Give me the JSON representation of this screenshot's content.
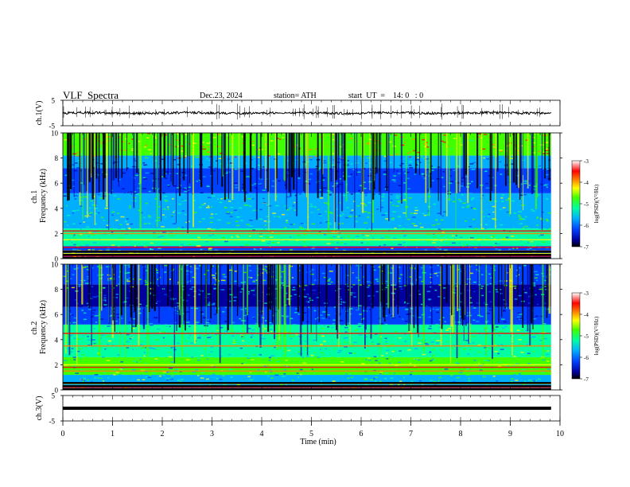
{
  "header": {
    "title": "VLF  Spectra",
    "date": "Dec.23, 2024",
    "station": "station= ATH",
    "start_ut": "start  UT  =    14: 0   : 0"
  },
  "chart_data": [
    {
      "type": "line",
      "panel": "ch1-waveform",
      "ylabel": "ch.1(V)",
      "ylim": [
        -5,
        5
      ],
      "yticks": [
        "5",
        "-5"
      ],
      "baseline_value": 0,
      "color": "#000000"
    },
    {
      "type": "heatmap",
      "panel": "ch1-spectrogram",
      "ylabel": "ch.1\nFrequency  (kHz)",
      "ylim": [
        0,
        10
      ],
      "yticks": [
        "0",
        "2",
        "4",
        "6",
        "8",
        "10"
      ],
      "xlim": [
        0,
        10
      ],
      "colorbar": {
        "label": "log(PSD)(V²/Hz)",
        "range": [
          -7,
          -3
        ],
        "ticks": [
          "-3",
          "-4",
          "-5",
          "-6",
          "-7"
        ]
      },
      "bands_khz": [
        0.2,
        0.4,
        0.6,
        0.9,
        1.5,
        2.0,
        2.2
      ]
    },
    {
      "type": "heatmap",
      "panel": "ch2-spectrogram",
      "ylabel": "ch.2\nFrequency  (kHz)",
      "ylim": [
        0,
        10
      ],
      "yticks": [
        "0",
        "2",
        "4",
        "6",
        "8",
        "10"
      ],
      "xlim": [
        0,
        10
      ],
      "colorbar": {
        "label": "log(PSD)(V²/Hz)",
        "range": [
          -7,
          -3
        ],
        "ticks": [
          "-3",
          "-4",
          "-5",
          "-6",
          "-7"
        ]
      },
      "bands_khz": [
        0.2,
        0.5,
        1.5,
        1.8,
        2.0,
        3.5,
        4.5
      ]
    },
    {
      "type": "line",
      "panel": "ch3-waveform",
      "ylabel": "ch.3(V)",
      "ylim": [
        -5,
        5
      ],
      "yticks": [
        "5",
        "-5"
      ],
      "baseline_value": 0,
      "color": "#000000"
    }
  ],
  "xaxis": {
    "label": "Time  (min)",
    "range": [
      0,
      10
    ],
    "ticks": [
      "0",
      "1",
      "2",
      "3",
      "4",
      "5",
      "6",
      "7",
      "8",
      "9",
      "10"
    ],
    "data_end": 9.82
  },
  "colors": {
    "colormap": [
      "#000000",
      "#0000a0",
      "#0040ff",
      "#00b0ff",
      "#00ffa0",
      "#40ff00",
      "#ffff00",
      "#ff8000",
      "#ff0000",
      "#ffffff"
    ]
  }
}
